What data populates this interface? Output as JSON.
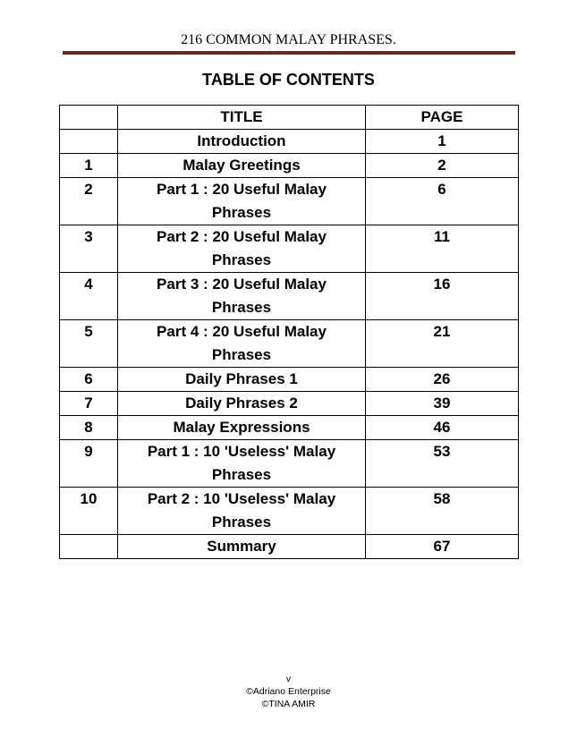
{
  "header": {
    "title": "216 COMMON MALAY PHRASES."
  },
  "toc": {
    "heading": "TABLE OF CONTENTS",
    "columns": [
      "",
      "TITLE",
      "PAGE"
    ],
    "rows": [
      {
        "num": "",
        "title": "Introduction",
        "page": "1"
      },
      {
        "num": "1",
        "title": "Malay Greetings",
        "page": "2"
      },
      {
        "num": "2",
        "title": "Part 1 : 20 Useful Malay Phrases",
        "page": "6"
      },
      {
        "num": "3",
        "title": "Part 2 : 20 Useful Malay Phrases",
        "page": "11"
      },
      {
        "num": "4",
        "title": "Part 3 : 20 Useful Malay Phrases",
        "page": "16"
      },
      {
        "num": "5",
        "title": "Part 4 : 20 Useful Malay Phrases",
        "page": "21"
      },
      {
        "num": "6",
        "title": "Daily Phrases 1",
        "page": "26"
      },
      {
        "num": "7",
        "title": "Daily Phrases 2",
        "page": "39"
      },
      {
        "num": "8",
        "title": "Malay Expressions",
        "page": "46"
      },
      {
        "num": "9",
        "title": "Part 1 : 10 'Useless' Malay Phrases",
        "page": "53"
      },
      {
        "num": "10",
        "title": "Part 2 : 10 'Useless' Malay Phrases",
        "page": "58"
      },
      {
        "num": "",
        "title": "Summary",
        "page": "67"
      }
    ]
  },
  "footer": {
    "page_number": "v",
    "line1": "©Adriano Enterprise",
    "line2": "©TINA AMIR"
  },
  "colors": {
    "rule": "#6b2a26"
  }
}
